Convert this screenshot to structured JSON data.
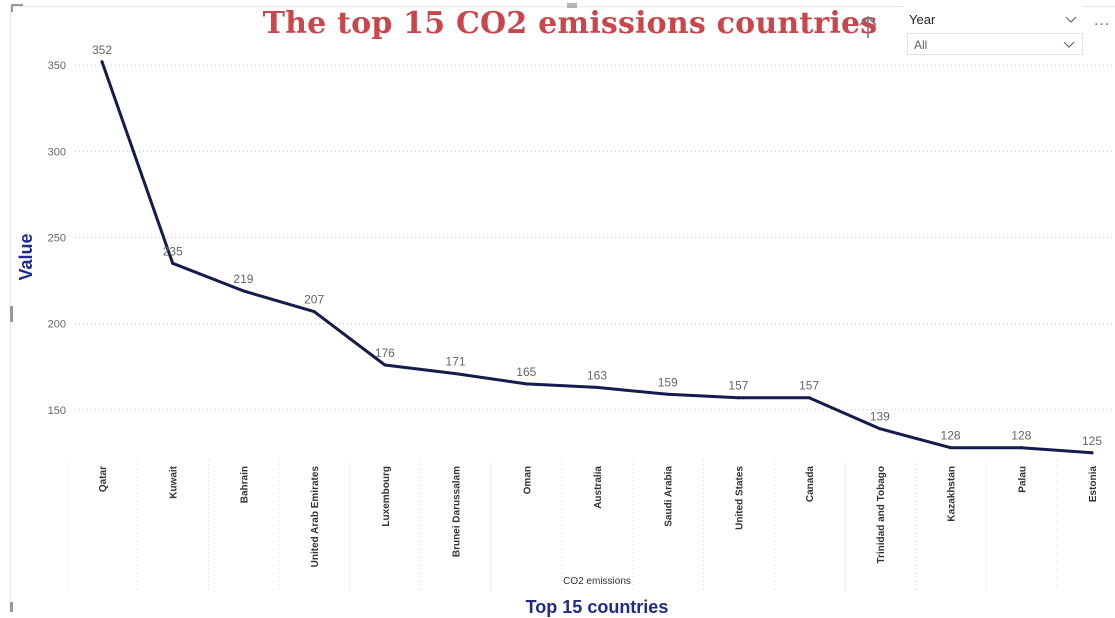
{
  "visual": {
    "title": "The top 15 CO2 emissions countries",
    "sort_icon": "arrow-up-icon",
    "more_icon": "more-options-icon",
    "more_label": "..."
  },
  "slicer": {
    "field": "Year",
    "value": "All",
    "chevron_icon": "chevron-down-icon"
  },
  "chart_data": {
    "type": "line",
    "xlabel": "Top 15 countries",
    "x_subtitle": "CO2 emissions",
    "ylabel": "Value",
    "ylim": [
      122,
      360
    ],
    "yticks": [
      150,
      200,
      250,
      300,
      350
    ],
    "grid": true,
    "line_color": "#141b4d",
    "title_color": "#c9474c",
    "axis_title_color": "#1f2a8a",
    "categories": [
      "Qatar",
      "Kuwait",
      "Bahrain",
      "United Arab Emirates",
      "Luxembourg",
      "Brunei Darussalam",
      "Oman",
      "Australia",
      "Saudi Arabia",
      "United States",
      "Canada",
      "Trinidad and Tobago",
      "Kazakhstan",
      "Palau",
      "Estonia"
    ],
    "values": [
      352,
      235,
      219,
      207,
      176,
      171,
      165,
      163,
      159,
      157,
      157,
      139,
      128,
      128,
      125
    ]
  }
}
